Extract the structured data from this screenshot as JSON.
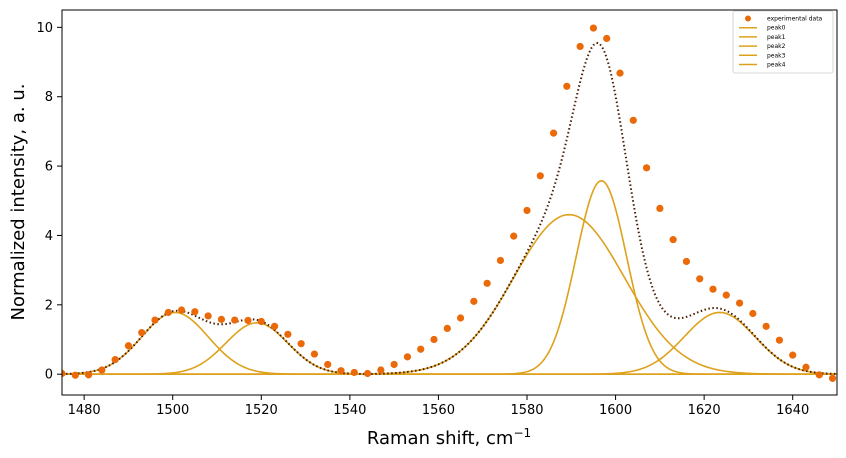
{
  "chart_data": {
    "type": "line",
    "xlabel": "Raman shift, cm",
    "xlabel_sup": "−1",
    "ylabel": "Normalized intensity, a. u.",
    "xlim": [
      1475,
      1650
    ],
    "ylim": [
      -0.6,
      10.5
    ],
    "xticks": [
      1480,
      1500,
      1520,
      1540,
      1560,
      1580,
      1600,
      1620,
      1640
    ],
    "yticks": [
      0,
      2,
      4,
      6,
      8,
      10
    ],
    "legend_position": "top-right",
    "legend": [
      "experimental data",
      "peak0",
      "peak1",
      "peak2",
      "peak3",
      "peak4"
    ],
    "colors": {
      "experimental": "#ea6a0a",
      "peaks": "#dea11c",
      "fit": "#4a1c00"
    },
    "experimental_data": {
      "x": [
        1475.0,
        1478.0,
        1481.0,
        1484.0,
        1487.0,
        1490.0,
        1493.0,
        1496.0,
        1499.0,
        1502.0,
        1505.0,
        1508.0,
        1511.0,
        1514.0,
        1517.0,
        1520.0,
        1523.0,
        1526.0,
        1529.0,
        1532.0,
        1535.0,
        1538.0,
        1541.0,
        1544.0,
        1547.0,
        1550.0,
        1553.0,
        1556.0,
        1559.0,
        1562.0,
        1565.0,
        1568.0,
        1571.0,
        1574.0,
        1577.0,
        1580.0,
        1583.0,
        1586.0,
        1589.0,
        1592.0,
        1595.0,
        1598.0,
        1601.0,
        1604.0,
        1607.0,
        1610.0,
        1613.0,
        1616.0,
        1619.0,
        1622.0,
        1625.0,
        1628.0,
        1631.0,
        1634.0,
        1637.0,
        1640.0,
        1643.0,
        1646.0,
        1649.0
      ],
      "y": [
        0.02,
        -0.03,
        -0.02,
        0.12,
        0.42,
        0.82,
        1.2,
        1.56,
        1.78,
        1.85,
        1.8,
        1.68,
        1.58,
        1.56,
        1.55,
        1.52,
        1.38,
        1.15,
        0.88,
        0.58,
        0.28,
        0.1,
        0.05,
        0.02,
        0.12,
        0.28,
        0.5,
        0.72,
        1.0,
        1.32,
        1.62,
        2.1,
        2.62,
        3.28,
        3.98,
        4.72,
        5.72,
        6.95,
        8.3,
        9.45,
        9.98,
        9.68,
        8.68,
        7.32,
        5.95,
        4.78,
        3.88,
        3.25,
        2.75,
        2.45,
        2.28,
        2.05,
        1.75,
        1.38,
        0.98,
        0.55,
        0.2,
        -0.02,
        -0.12
      ]
    },
    "peaks": [
      {
        "name": "peak0",
        "center": 1500.5,
        "amplitude": 1.78,
        "sigma": 7.5
      },
      {
        "name": "peak1",
        "center": 1519.0,
        "amplitude": 1.48,
        "sigma": 7.0
      },
      {
        "name": "peak2",
        "center": 1589.5,
        "amplitude": 4.6,
        "sigma": 12.5
      },
      {
        "name": "peak3",
        "center": 1596.8,
        "amplitude": 5.58,
        "sigma": 5.7
      },
      {
        "name": "peak4",
        "center": 1623.5,
        "amplitude": 1.78,
        "sigma": 8.0
      }
    ]
  }
}
